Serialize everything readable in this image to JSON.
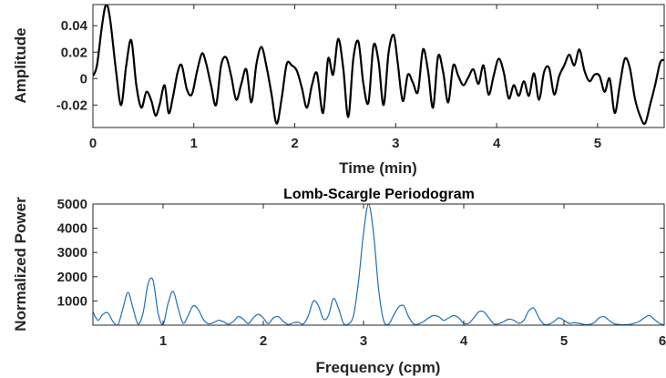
{
  "chart_data": [
    {
      "type": "line",
      "title": "",
      "xlabel": "Time (min)",
      "ylabel": "Amplitude",
      "xlim": [
        0,
        5.66
      ],
      "ylim": [
        -0.037,
        0.056
      ],
      "xticks": [
        0,
        1,
        2,
        3,
        4,
        5
      ],
      "xtick_labels": [
        "0",
        "1",
        "2",
        "3",
        "4",
        "5"
      ],
      "yticks": [
        0.04,
        0.02,
        0,
        -0.02
      ],
      "ytick_labels": [
        "0.04",
        "0.02",
        "0",
        "-0.02"
      ],
      "grid": false,
      "color": "#000000",
      "series": [
        {
          "name": "",
          "x": [
            0,
            0.04,
            0.09,
            0.13,
            0.17,
            0.23,
            0.28,
            0.33,
            0.38,
            0.43,
            0.48,
            0.53,
            0.58,
            0.62,
            0.66,
            0.71,
            0.75,
            0.79,
            0.84,
            0.88,
            0.93,
            0.98,
            1.03,
            1.08,
            1.12,
            1.17,
            1.22,
            1.27,
            1.32,
            1.37,
            1.42,
            1.47,
            1.52,
            1.57,
            1.62,
            1.67,
            1.72,
            1.77,
            1.82,
            1.87,
            1.92,
            1.97,
            2.02,
            2.07,
            2.12,
            2.17,
            2.22,
            2.28,
            2.33,
            2.38,
            2.43,
            2.48,
            2.53,
            2.58,
            2.63,
            2.68,
            2.73,
            2.78,
            2.83,
            2.88,
            2.93,
            2.98,
            3.02,
            3.07,
            3.12,
            3.17,
            3.22,
            3.27,
            3.32,
            3.37,
            3.42,
            3.47,
            3.52,
            3.57,
            3.62,
            3.67,
            3.72,
            3.77,
            3.82,
            3.87,
            3.92,
            3.97,
            4.02,
            4.07,
            4.12,
            4.17,
            4.22,
            4.27,
            4.32,
            4.37,
            4.42,
            4.47,
            4.52,
            4.57,
            4.62,
            4.67,
            4.72,
            4.77,
            4.82,
            4.87,
            4.92,
            4.97,
            5.02,
            5.07,
            5.12,
            5.17,
            5.22,
            5.27,
            5.32,
            5.37,
            5.42,
            5.47,
            5.52,
            5.57,
            5.62,
            5.66
          ],
          "y": [
            0.002,
            0.01,
            0.04,
            0.056,
            0.045,
            0.005,
            -0.02,
            0.01,
            0.029,
            -0.005,
            -0.022,
            -0.01,
            -0.017,
            -0.028,
            -0.02,
            -0.005,
            -0.026,
            -0.015,
            0.005,
            0.01,
            -0.008,
            -0.012,
            0.005,
            0.019,
            0.012,
            -0.005,
            -0.02,
            0.01,
            0.016,
            0.002,
            -0.016,
            -0.004,
            0.007,
            -0.018,
            0.011,
            0.024,
            0.009,
            -0.012,
            -0.034,
            -0.015,
            0.011,
            0.01,
            0.006,
            -0.007,
            -0.022,
            -0.005,
            0.004,
            -0.026,
            0.015,
            0.003,
            0.03,
            0.008,
            -0.029,
            0.015,
            0.028,
            -0.004,
            -0.018,
            0.025,
            0.013,
            -0.02,
            0.02,
            0.033,
            0.012,
            -0.017,
            0.003,
            -0.003,
            -0.01,
            0.022,
            0.006,
            -0.022,
            0.017,
            0.005,
            -0.018,
            0.01,
            0.002,
            -0.005,
            0.001,
            0.007,
            -0.004,
            0.01,
            -0.012,
            0.002,
            0.015,
            0.005,
            -0.015,
            -0.005,
            -0.013,
            -0.002,
            -0.013,
            0.004,
            -0.016,
            0.005,
            0.008,
            -0.012,
            0.002,
            0.01,
            0.018,
            0.01,
            0.022,
            0.006,
            -0.002,
            0.003,
            0.002,
            -0.01,
            0.0,
            -0.026,
            -0.005,
            0.015,
            0.008,
            -0.015,
            -0.028,
            -0.034,
            -0.02,
            -0.005,
            0.012,
            0.014
          ]
        }
      ]
    },
    {
      "type": "line",
      "title": "Lomb-Scargle Periodogram",
      "xlabel": "Frequency (cpm)",
      "ylabel": "Normalized Power",
      "xlim": [
        0.3,
        6.0
      ],
      "ylim": [
        0,
        5000
      ],
      "xticks": [
        1,
        2,
        3,
        4,
        5,
        6
      ],
      "xtick_labels": [
        "1",
        "2",
        "3",
        "4",
        "5",
        "6"
      ],
      "yticks": [
        5000,
        4000,
        3000,
        2000,
        1000
      ],
      "ytick_labels": [
        "5000",
        "4000",
        "3000",
        "2000",
        "1000"
      ],
      "grid": false,
      "color": "#1f6fb5",
      "series": [
        {
          "name": "",
          "x": [
            0.3,
            0.35,
            0.4,
            0.45,
            0.5,
            0.55,
            0.6,
            0.65,
            0.7,
            0.75,
            0.8,
            0.85,
            0.9,
            0.95,
            1.0,
            1.05,
            1.1,
            1.15,
            1.2,
            1.25,
            1.3,
            1.35,
            1.4,
            1.45,
            1.5,
            1.55,
            1.6,
            1.65,
            1.7,
            1.75,
            1.8,
            1.85,
            1.9,
            1.95,
            2.0,
            2.05,
            2.1,
            2.15,
            2.2,
            2.25,
            2.3,
            2.35,
            2.4,
            2.45,
            2.5,
            2.55,
            2.6,
            2.65,
            2.7,
            2.75,
            2.8,
            2.85,
            2.9,
            2.95,
            3.0,
            3.05,
            3.1,
            3.15,
            3.2,
            3.25,
            3.3,
            3.35,
            3.4,
            3.45,
            3.5,
            3.55,
            3.6,
            3.65,
            3.7,
            3.75,
            3.8,
            3.85,
            3.9,
            3.95,
            4.0,
            4.05,
            4.1,
            4.15,
            4.2,
            4.25,
            4.3,
            4.35,
            4.4,
            4.45,
            4.5,
            4.55,
            4.6,
            4.65,
            4.7,
            4.75,
            4.8,
            4.85,
            4.9,
            4.95,
            5.0,
            5.05,
            5.1,
            5.15,
            5.2,
            5.25,
            5.3,
            5.35,
            5.4,
            5.45,
            5.5,
            5.55,
            5.6,
            5.65,
            5.7,
            5.75,
            5.8,
            5.85,
            5.9,
            5.95,
            6.0
          ],
          "y": [
            550,
            200,
            450,
            500,
            150,
            20,
            700,
            1350,
            700,
            50,
            500,
            1700,
            1850,
            500,
            30,
            900,
            1400,
            700,
            80,
            400,
            800,
            650,
            250,
            60,
            100,
            200,
            150,
            40,
            150,
            350,
            250,
            60,
            300,
            450,
            300,
            60,
            300,
            350,
            150,
            30,
            100,
            120,
            50,
            400,
            1000,
            800,
            250,
            400,
            1100,
            700,
            80,
            50,
            400,
            1800,
            3800,
            5000,
            3800,
            1500,
            200,
            40,
            400,
            750,
            800,
            350,
            50,
            50,
            150,
            300,
            400,
            350,
            200,
            300,
            400,
            300,
            80,
            80,
            300,
            550,
            550,
            300,
            60,
            60,
            150,
            250,
            200,
            80,
            200,
            600,
            700,
            300,
            40,
            40,
            150,
            300,
            200,
            80,
            100,
            80,
            30,
            30,
            100,
            300,
            350,
            200,
            60,
            30,
            20,
            30,
            80,
            150,
            300,
            400,
            250,
            80,
            10
          ]
        }
      ]
    }
  ]
}
